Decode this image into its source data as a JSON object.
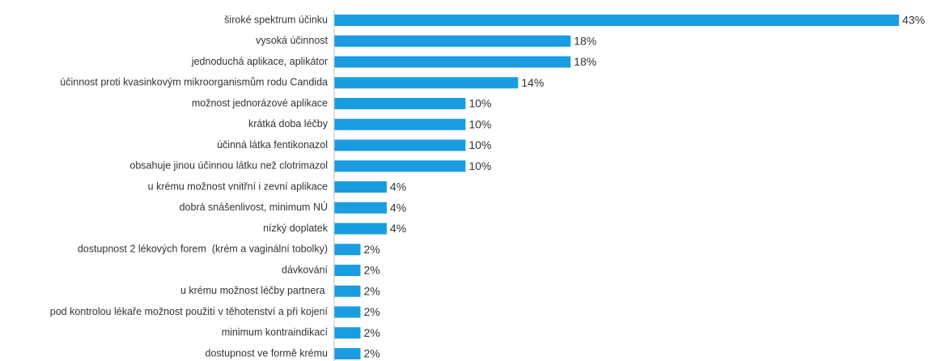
{
  "chart_data": {
    "type": "barh",
    "categories": [
      "široké spektrum účinku",
      "vysoká účinnost",
      "jednoduchá aplikace, aplikátor",
      "účinnost proti kvasinkovým mikroorganismům rodu Candida",
      "možnost jednorázové aplikace",
      "krátká doba léčby",
      "účinná látka fentikonazol",
      "obsahuje jinou účinnou látku než clotrimazol",
      "u krému možnost vnitřní i zevní aplikace",
      "dobrá snášenlivost, minimum NÚ",
      "nízký doplatek",
      "dostupnost 2 lékových forem  (krém a vaginální tobolky)",
      "dávkování",
      "u krému možnost léčby partnera ",
      "pod kontrolou lékaře možnost použití v těhotenství a při kojení",
      "minimum kontraindikací",
      "dostupnost ve formě krému"
    ],
    "values": [
      43,
      18,
      18,
      14,
      10,
      10,
      10,
      10,
      4,
      4,
      4,
      2,
      2,
      2,
      2,
      2,
      2
    ],
    "value_labels": [
      "43%",
      "18%",
      "18%",
      "14%",
      "10%",
      "10%",
      "10%",
      "10%",
      "4%",
      "4%",
      "4%",
      "2%",
      "2%",
      "2%",
      "2%",
      "2%",
      "2%"
    ],
    "color": "#1a9de0"
  }
}
